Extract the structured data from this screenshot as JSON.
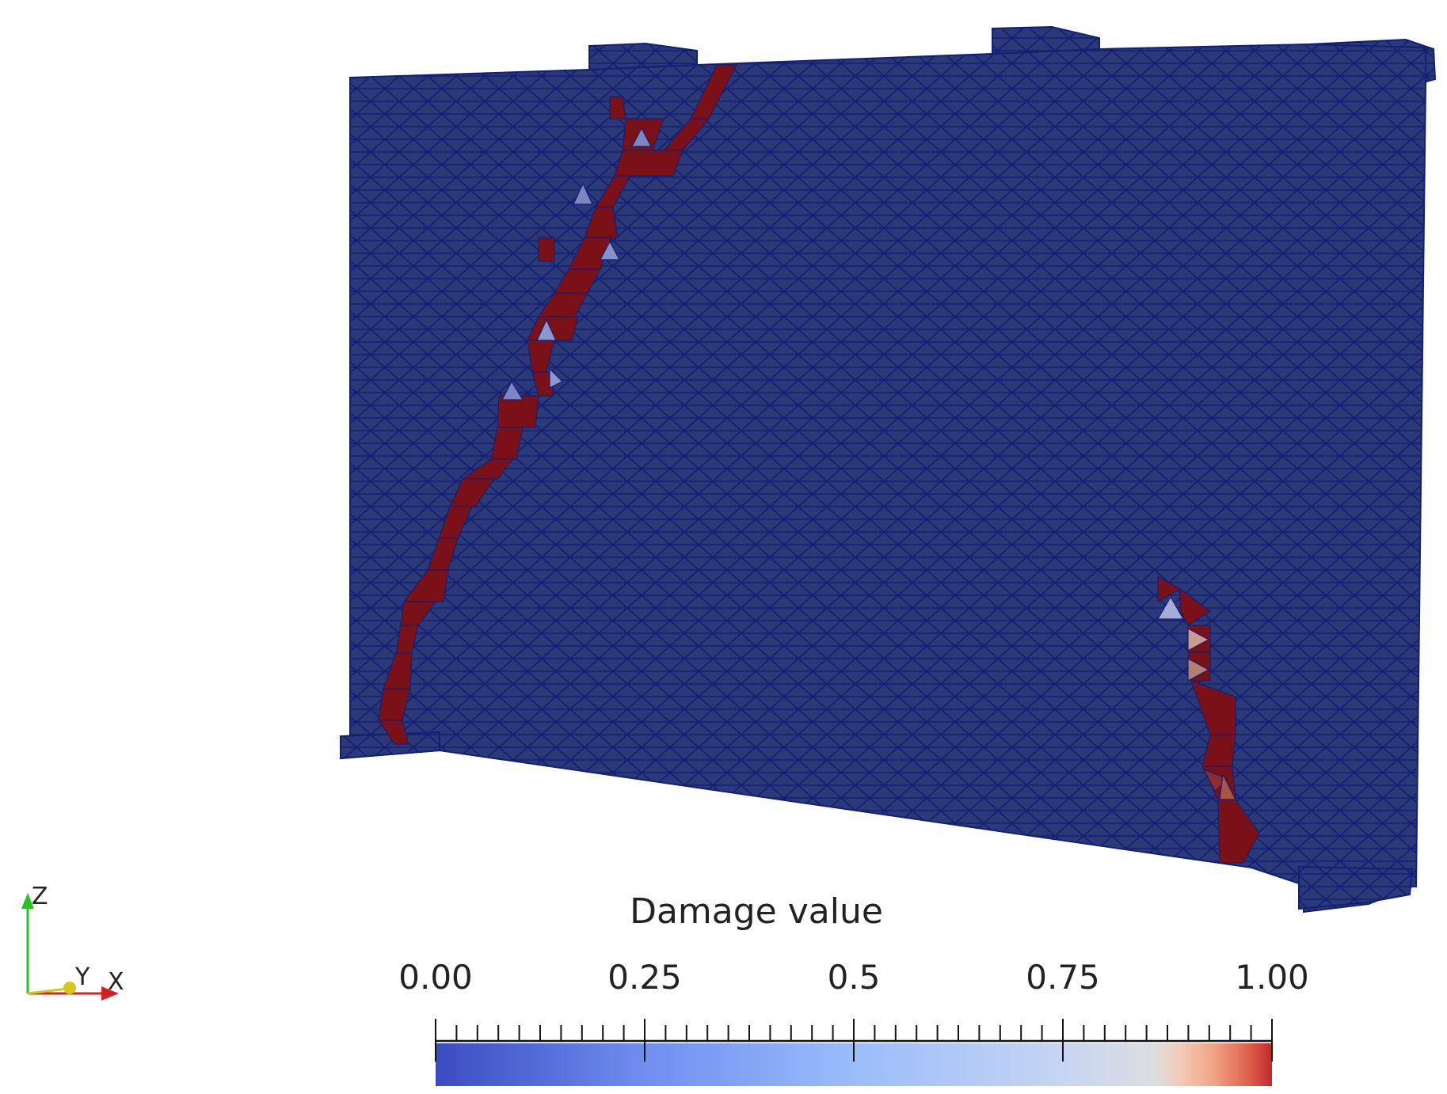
{
  "scene": {
    "object": "damaged-wall-mesh",
    "mesh_color": "#2a3a78",
    "mesh_line_color": "#141e72",
    "damage_color": "#7a1118"
  },
  "legend": {
    "title": "Damage value",
    "ticks": [
      "0.00",
      "0.25",
      "0.5",
      "0.75",
      "1.00"
    ],
    "range": [
      0,
      1
    ],
    "colormap": [
      "#3b4cc0",
      "#6f8ef0",
      "#a9c6fb",
      "#dcdde0",
      "#f2b79a",
      "#e26952",
      "#b40426"
    ]
  },
  "orientation_axes": {
    "labels": [
      "Z",
      "Y",
      "X"
    ],
    "colors": {
      "z": "#22c422",
      "y": "#d4c61a",
      "x": "#d42020"
    }
  }
}
